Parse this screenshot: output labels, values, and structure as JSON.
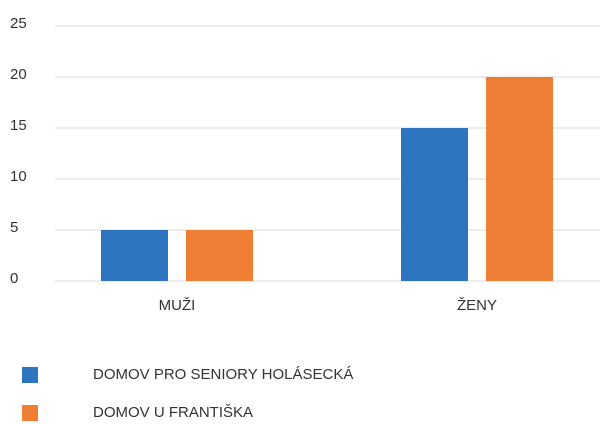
{
  "chart_data": {
    "type": "bar",
    "categories": [
      "MUŽI",
      "ŽENY"
    ],
    "series": [
      {
        "name": "DOMOV PRO SENIORY HOLÁSECKÁ",
        "color": "#2e75c0",
        "values": [
          5,
          15
        ]
      },
      {
        "name": "DOMOV U FRANTIŠKA",
        "color": "#f07f36",
        "values": [
          5,
          20
        ]
      }
    ],
    "ylim": [
      0,
      25
    ],
    "yticks": [
      0,
      5,
      10,
      15,
      20,
      25
    ],
    "grid": true
  }
}
